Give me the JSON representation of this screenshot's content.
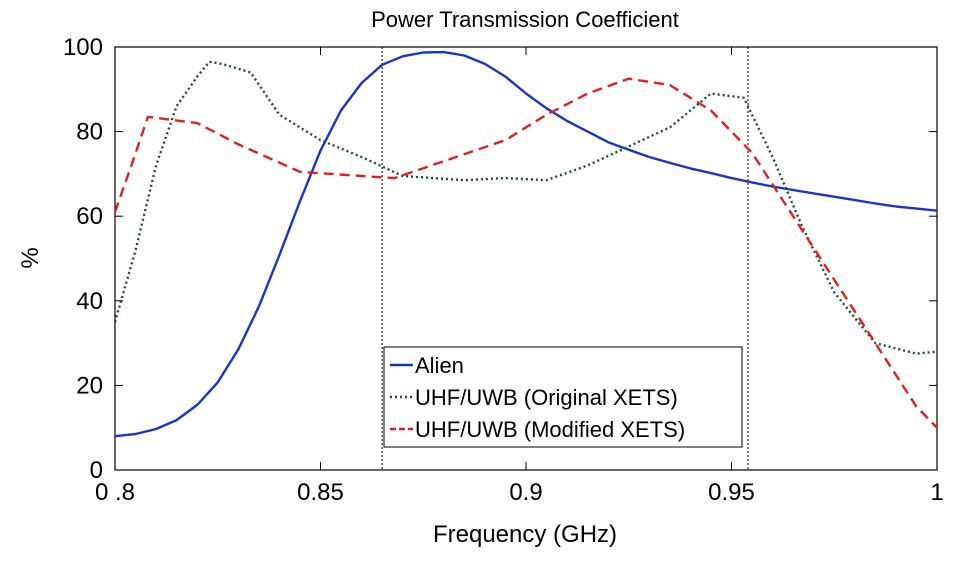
{
  "chart_data": {
    "type": "line",
    "title": "Power Transmission Coefficient",
    "xlabel": "Frequency (GHz)",
    "ylabel": "%",
    "xlim": [
      0.8,
      1.0
    ],
    "ylim": [
      0,
      100
    ],
    "x_ticks": [
      0.8,
      0.85,
      0.9,
      0.95,
      1.0
    ],
    "x_tick_labels": [
      "0 .8",
      "0.85",
      "0.9",
      "0.95",
      "1"
    ],
    "y_ticks": [
      0,
      20,
      40,
      60,
      80,
      100
    ],
    "y_tick_labels": [
      "0",
      "20",
      "40",
      "60",
      "80",
      "100"
    ],
    "grid": false,
    "legend_position": "lower-center",
    "vertical_markers": [
      0.865,
      0.954
    ],
    "series": [
      {
        "name": "Alien",
        "color": "#1a33cc",
        "style": "solid",
        "x": [
          0.8,
          0.805,
          0.81,
          0.815,
          0.82,
          0.825,
          0.83,
          0.835,
          0.84,
          0.845,
          0.85,
          0.855,
          0.86,
          0.865,
          0.87,
          0.875,
          0.88,
          0.885,
          0.89,
          0.895,
          0.9,
          0.905,
          0.91,
          0.915,
          0.92,
          0.925,
          0.93,
          0.935,
          0.94,
          0.945,
          0.95,
          0.955,
          0.96,
          0.965,
          0.97,
          0.975,
          0.98,
          0.985,
          0.99,
          0.995,
          1.0
        ],
        "values": [
          8,
          8.5,
          9.7,
          11.8,
          15.4,
          20.7,
          28.5,
          38.6,
          50.8,
          63.5,
          75.5,
          85,
          91.5,
          95.8,
          97.8,
          98.7,
          98.8,
          98,
          96,
          93,
          89,
          85.5,
          82.5,
          80,
          77.5,
          75.7,
          74,
          72.6,
          71.3,
          70.2,
          69,
          68,
          67,
          66.2,
          65.4,
          64.6,
          63.8,
          63,
          62.3,
          61.8,
          61.3
        ]
      },
      {
        "name": "UHF/UWB (Original XETS)",
        "color": "#1a4d2e",
        "style": "dotted",
        "x": [
          0.8,
          0.805,
          0.81,
          0.815,
          0.82,
          0.823,
          0.826,
          0.833,
          0.84,
          0.85,
          0.86,
          0.87,
          0.885,
          0.895,
          0.905,
          0.915,
          0.925,
          0.935,
          0.945,
          0.953,
          0.96,
          0.967,
          0.975,
          0.985,
          0.995,
          1.0
        ],
        "values": [
          35,
          52,
          72,
          86,
          93,
          96.5,
          96,
          94,
          84,
          78,
          74,
          69.5,
          68.5,
          69,
          68.5,
          72,
          76.5,
          81,
          89,
          88,
          74,
          58,
          42,
          30,
          27.5,
          28
        ]
      },
      {
        "name": "UHF/UWB (Modified XETS)",
        "color": "#e02020",
        "style": "dashed",
        "x": [
          0.8,
          0.804,
          0.808,
          0.812,
          0.82,
          0.83,
          0.845,
          0.86,
          0.868,
          0.88,
          0.895,
          0.905,
          0.915,
          0.925,
          0.935,
          0.945,
          0.955,
          0.965,
          0.975,
          0.985,
          0.995,
          1.0
        ],
        "values": [
          61,
          72,
          83.5,
          83,
          82,
          77,
          70.5,
          69.5,
          69,
          73,
          78,
          84,
          89,
          92.5,
          91,
          85,
          75,
          60,
          45,
          30,
          15,
          10
        ]
      }
    ]
  }
}
